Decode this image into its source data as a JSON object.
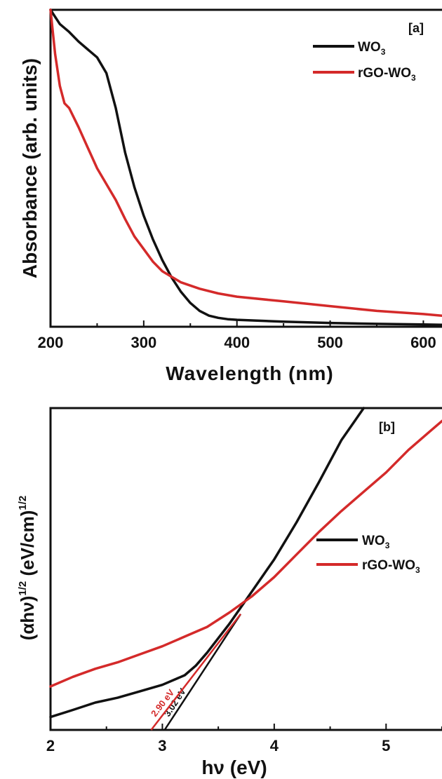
{
  "chart_data": [
    {
      "panel_label": "[a]",
      "type": "line",
      "xlabel": "Wavelength (nm)",
      "ylabel": "Absorbance (arb. units)",
      "xlim": [
        200,
        620
      ],
      "ylim": [
        0,
        1
      ],
      "x_ticks": [
        200,
        300,
        400,
        500,
        600
      ],
      "x_tick_labels": [
        "200",
        "300",
        "400",
        "500",
        "600"
      ],
      "y_ticks_labeled": false,
      "legend": {
        "position": "top-right",
        "entries": [
          "WO3",
          "rGO-WO3"
        ]
      },
      "series": [
        {
          "name": "WO3",
          "color": "#111111",
          "x": [
            200,
            210,
            220,
            230,
            240,
            250,
            260,
            270,
            280,
            290,
            300,
            310,
            320,
            330,
            340,
            350,
            360,
            370,
            380,
            390,
            400,
            450,
            500,
            550,
            600,
            620
          ],
          "y": [
            1.0,
            0.955,
            0.93,
            0.9,
            0.875,
            0.85,
            0.8,
            0.69,
            0.55,
            0.44,
            0.35,
            0.275,
            0.21,
            0.155,
            0.11,
            0.075,
            0.05,
            0.035,
            0.028,
            0.024,
            0.022,
            0.016,
            0.012,
            0.009,
            0.007,
            0.006
          ]
        },
        {
          "name": "rGO-WO3",
          "color": "#d42a2a",
          "x": [
            200,
            205,
            210,
            215,
            220,
            230,
            240,
            250,
            260,
            270,
            280,
            290,
            300,
            310,
            320,
            340,
            360,
            380,
            400,
            450,
            500,
            550,
            600,
            620
          ],
          "y": [
            1.0,
            0.86,
            0.76,
            0.705,
            0.69,
            0.63,
            0.565,
            0.5,
            0.45,
            0.4,
            0.34,
            0.285,
            0.245,
            0.205,
            0.175,
            0.14,
            0.12,
            0.105,
            0.095,
            0.08,
            0.065,
            0.05,
            0.04,
            0.035
          ]
        }
      ]
    },
    {
      "panel_label": "[b]",
      "type": "line",
      "xlabel": "hν (eV)",
      "ylabel": "(αhν)1/2 (eV/cm)1/2",
      "xlim": [
        2.0,
        5.5
      ],
      "ylim": [
        0,
        1
      ],
      "x_ticks": [
        2,
        3,
        4,
        5
      ],
      "x_tick_labels": [
        "2",
        "3",
        "4",
        "5"
      ],
      "y_ticks_labeled": false,
      "legend": {
        "position": "center-right",
        "entries": [
          "WO3",
          "rGO-WO3"
        ]
      },
      "series": [
        {
          "name": "WO3",
          "color": "#111111",
          "x": [
            2.0,
            2.2,
            2.4,
            2.6,
            2.8,
            3.0,
            3.2,
            3.3,
            3.4,
            3.5,
            3.6,
            3.7,
            3.8,
            3.9,
            4.0,
            4.2,
            4.4,
            4.6,
            4.8
          ],
          "y": [
            0.04,
            0.062,
            0.085,
            0.1,
            0.12,
            0.14,
            0.17,
            0.2,
            0.24,
            0.285,
            0.33,
            0.38,
            0.43,
            0.48,
            0.53,
            0.645,
            0.77,
            0.9,
            1.0
          ]
        },
        {
          "name": "rGO-WO3",
          "color": "#d42a2a",
          "x": [
            2.0,
            2.2,
            2.4,
            2.6,
            2.8,
            3.0,
            3.2,
            3.4,
            3.6,
            3.8,
            4.0,
            4.2,
            4.4,
            4.6,
            4.8,
            5.0,
            5.2,
            5.4,
            5.5
          ],
          "y": [
            0.135,
            0.165,
            0.19,
            0.21,
            0.235,
            0.26,
            0.29,
            0.32,
            0.365,
            0.415,
            0.475,
            0.545,
            0.615,
            0.68,
            0.74,
            0.8,
            0.87,
            0.93,
            0.96
          ]
        }
      ],
      "tangent_lines": [
        {
          "series": "WO3",
          "color": "#111111",
          "x_intercept": 3.02,
          "label": "3.02 eV",
          "through": [
            3.7,
            0.36
          ]
        },
        {
          "series": "rGO-WO3",
          "color": "#d42a2a",
          "x_intercept": 2.9,
          "label": "2.90 eV",
          "through": [
            3.7,
            0.36
          ]
        }
      ]
    }
  ]
}
